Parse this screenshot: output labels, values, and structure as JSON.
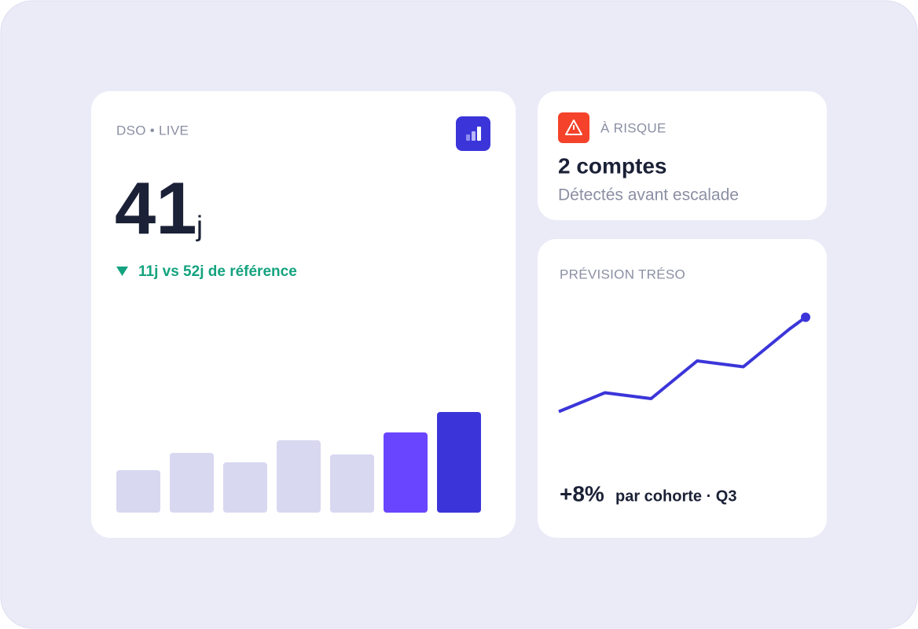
{
  "dso_card": {
    "label": "DSO • LIVE",
    "value": "41",
    "unit": "j",
    "delta": "11j vs 52j de référence"
  },
  "risk_card": {
    "label": "À RISQUE",
    "title": "2 comptes",
    "subtitle": "Détectés avant escalade"
  },
  "forecast_card": {
    "label": "PRÉVISION TRÉSO",
    "value": "+8%",
    "caption": "par cohorte · Q3"
  },
  "chart_data": [
    {
      "type": "bar",
      "values": [
        54,
        76,
        64,
        92,
        74,
        102,
        128
      ],
      "ylim": [
        0,
        128
      ],
      "colors": [
        "#d8d8f1",
        "#d8d8f1",
        "#d8d8f1",
        "#d8d8f1",
        "#d8d8f1",
        "#6a45ff",
        "#3b35d9"
      ]
    },
    {
      "type": "line",
      "x": [
        0,
        1,
        2,
        3,
        4,
        5,
        5.35
      ],
      "values": [
        11,
        27,
        22,
        54,
        49,
        81,
        91
      ],
      "xlim": [
        0,
        5.35
      ],
      "ylim": [
        0,
        100
      ],
      "color": "#3b35d9"
    }
  ]
}
